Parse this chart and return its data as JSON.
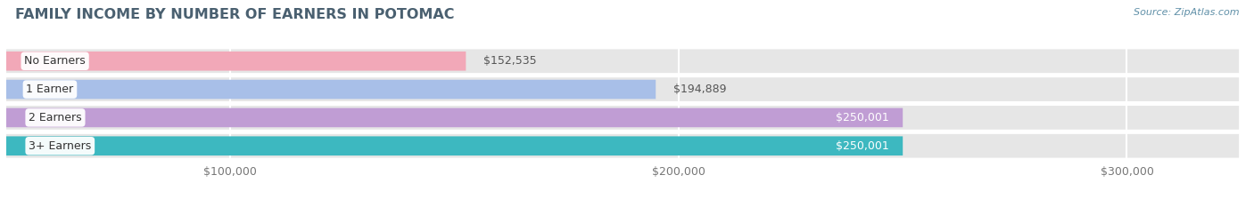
{
  "title": "FAMILY INCOME BY NUMBER OF EARNERS IN POTOMAC",
  "source": "Source: ZipAtlas.com",
  "categories": [
    "No Earners",
    "1 Earner",
    "2 Earners",
    "3+ Earners"
  ],
  "values": [
    152535,
    194889,
    250001,
    250001
  ],
  "bar_colors": [
    "#f2a8b8",
    "#a8bfe8",
    "#c09dd4",
    "#3db8c0"
  ],
  "label_colors_inside": [
    "#ffffff",
    "#ffffff",
    "#ffffff",
    "#ffffff"
  ],
  "label_colors_outside": [
    "#555555",
    "#555555",
    "#555555",
    "#555555"
  ],
  "x_min": 50000,
  "x_max": 325000,
  "x_ticks": [
    100000,
    200000,
    300000
  ],
  "x_tick_labels": [
    "$100,000",
    "$200,000",
    "$300,000"
  ],
  "bg_color": "#ffffff",
  "bar_bg_color": "#e6e6e6",
  "row_bg_colors": [
    "#f7f7f7",
    "#f7f7f7",
    "#f7f7f7",
    "#f7f7f7"
  ],
  "title_color": "#4a6070",
  "source_color": "#6090a8",
  "title_fontsize": 11.5,
  "label_fontsize": 9,
  "cat_fontsize": 9,
  "tick_fontsize": 9,
  "bar_height": 0.68,
  "value_labels": [
    "$152,535",
    "$194,889",
    "$250,001",
    "$250,001"
  ],
  "inside_threshold": 220000
}
